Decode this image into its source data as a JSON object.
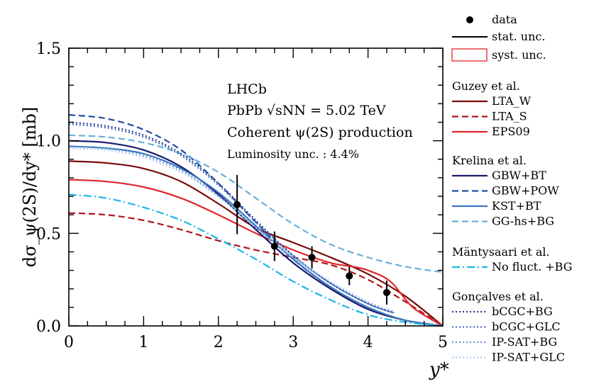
{
  "chart_data": {
    "type": "line",
    "title": "",
    "xlabel": "y*",
    "ylabel": "dσ_ψ(2S)/dy* [mb]",
    "xlim": [
      0,
      5
    ],
    "ylim": [
      0,
      1.5
    ],
    "x_ticks": [
      "0",
      "1",
      "2",
      "3",
      "4",
      "5"
    ],
    "y_ticks": [
      "0.0",
      "0.5",
      "1.0",
      "1.5"
    ],
    "annotations": {
      "experiment": "LHCb",
      "system": "PbPb √sNN = 5.02 TeV",
      "process": "Coherent ψ(2S) production",
      "lumi": "Luminosity unc. : 4.4%"
    },
    "legend": {
      "data": "data",
      "stat": "stat. unc.",
      "syst": "syst. unc.",
      "groups": [
        {
          "author": "Guzey et al.",
          "entries": [
            "LTA_W",
            "LTA_S",
            "EPS09"
          ]
        },
        {
          "author": "Krelina et al.",
          "entries": [
            "GBW+BT",
            "GBW+POW",
            "KST+BT",
            "GG-hs+BG"
          ]
        },
        {
          "author": "Mäntysaari et al.",
          "entries": [
            "No fluct. +BG"
          ]
        },
        {
          "author": "Gonçalves et al.",
          "entries": [
            "bCGC+BG",
            "bCGC+GLC",
            "IP-SAT+BG",
            "IP-SAT+GLC"
          ]
        }
      ]
    },
    "data_points": [
      {
        "x": 2.25,
        "y": 0.655,
        "stat": 0.16
      },
      {
        "x": 2.75,
        "y": 0.43,
        "stat": 0.08
      },
      {
        "x": 3.25,
        "y": 0.37,
        "stat": 0.06
      },
      {
        "x": 3.75,
        "y": 0.27,
        "stat": 0.05
      },
      {
        "x": 4.25,
        "y": 0.18,
        "stat": 0.065
      }
    ],
    "series": [
      {
        "name": "LTA_W",
        "color": "#7a0b0b",
        "dash": "solid",
        "x": [
          0,
          0.5,
          1,
          1.5,
          2,
          2.5,
          3,
          3.5,
          4,
          4.5,
          5
        ],
        "y": [
          0.89,
          0.88,
          0.85,
          0.78,
          0.66,
          0.53,
          0.45,
          0.37,
          0.28,
          0.16,
          0.0
        ]
      },
      {
        "name": "LTA_S",
        "color": "#b0141b",
        "dash": "dashed",
        "x": [
          0,
          0.5,
          1,
          1.5,
          2,
          2.5,
          3,
          3.5,
          4,
          4.5,
          5
        ],
        "y": [
          0.61,
          0.6,
          0.57,
          0.52,
          0.46,
          0.41,
          0.37,
          0.33,
          0.25,
          0.13,
          0.0
        ]
      },
      {
        "name": "EPS09",
        "color": "#e0262b",
        "dash": "solid",
        "x": [
          0,
          0.5,
          1,
          1.5,
          2,
          2.5,
          3,
          3.5,
          3.8,
          4.0,
          4.3,
          4.6,
          5
        ],
        "y": [
          0.79,
          0.78,
          0.75,
          0.69,
          0.6,
          0.5,
          0.41,
          0.34,
          0.32,
          0.3,
          0.24,
          0.1,
          0.0
        ]
      },
      {
        "name": "GBW+BT",
        "color": "#1a1a6e",
        "dash": "solid",
        "x": [
          0,
          0.5,
          1,
          1.5,
          2,
          2.5,
          3,
          3.5,
          4,
          4.5,
          5
        ],
        "y": [
          1.0,
          0.99,
          0.95,
          0.86,
          0.71,
          0.52,
          0.34,
          0.2,
          0.09,
          0.03,
          0.0
        ]
      },
      {
        "name": "GBW+POW",
        "color": "#1f4fa6",
        "dash": "dashed",
        "x": [
          0,
          0.5,
          1,
          1.5,
          2,
          2.5,
          3,
          3.5,
          4,
          4.5,
          5
        ],
        "y": [
          1.14,
          1.12,
          1.06,
          0.95,
          0.77,
          0.56,
          0.36,
          0.21,
          0.1,
          0.03,
          0.0
        ]
      },
      {
        "name": "KST+BT",
        "color": "#3a78c0",
        "dash": "solid",
        "x": [
          0,
          0.5,
          1,
          1.5,
          2,
          2.5,
          3,
          3.5,
          4,
          4.5,
          5
        ],
        "y": [
          0.97,
          0.96,
          0.93,
          0.85,
          0.72,
          0.54,
          0.36,
          0.21,
          0.1,
          0.03,
          0.0
        ]
      },
      {
        "name": "GG-hs+BG",
        "color": "#6aafdc",
        "dash": "dashed",
        "x": [
          0,
          0.5,
          1,
          1.5,
          2,
          2.5,
          3,
          3.5,
          4,
          4.5,
          5
        ],
        "y": [
          1.03,
          1.02,
          0.99,
          0.93,
          0.83,
          0.69,
          0.55,
          0.44,
          0.37,
          0.32,
          0.29
        ]
      },
      {
        "name": "No fluct. +BG",
        "color": "#1cb6ea",
        "dash": "dashdot",
        "x": [
          0,
          0.5,
          1,
          1.5,
          2,
          2.5,
          3,
          3.5,
          4,
          4.5,
          5
        ],
        "y": [
          0.71,
          0.69,
          0.64,
          0.57,
          0.47,
          0.36,
          0.24,
          0.14,
          0.06,
          0.02,
          0.0
        ]
      },
      {
        "name": "bCGC+BG",
        "color": "#2c3f8f",
        "dash": "dotted",
        "x": [
          0,
          0.5,
          1,
          1.5,
          2,
          2.5,
          3,
          3.5,
          4,
          4.35
        ],
        "y": [
          1.1,
          1.08,
          1.03,
          0.93,
          0.77,
          0.57,
          0.38,
          0.23,
          0.12,
          0.07
        ]
      },
      {
        "name": "bCGC+GLC",
        "color": "#4a72c0",
        "dash": "dotted",
        "x": [
          0,
          0.5,
          1,
          1.5,
          2,
          2.5,
          3,
          3.5,
          4,
          4.35
        ],
        "y": [
          1.09,
          1.07,
          1.02,
          0.92,
          0.76,
          0.56,
          0.38,
          0.23,
          0.12,
          0.07
        ]
      },
      {
        "name": "IP-SAT+BG",
        "color": "#6c9ad8",
        "dash": "dotted",
        "x": [
          0,
          0.5,
          1,
          1.5,
          2,
          2.5,
          3,
          3.5,
          4,
          4.35
        ],
        "y": [
          0.97,
          0.96,
          0.92,
          0.84,
          0.7,
          0.53,
          0.37,
          0.23,
          0.12,
          0.07
        ]
      },
      {
        "name": "IP-SAT+GLC",
        "color": "#a9cdee",
        "dash": "dotted",
        "x": [
          0,
          0.5,
          1,
          1.5,
          2,
          2.5,
          3,
          3.5,
          4,
          4.35
        ],
        "y": [
          0.96,
          0.95,
          0.91,
          0.83,
          0.7,
          0.53,
          0.37,
          0.24,
          0.13,
          0.08
        ]
      }
    ]
  }
}
